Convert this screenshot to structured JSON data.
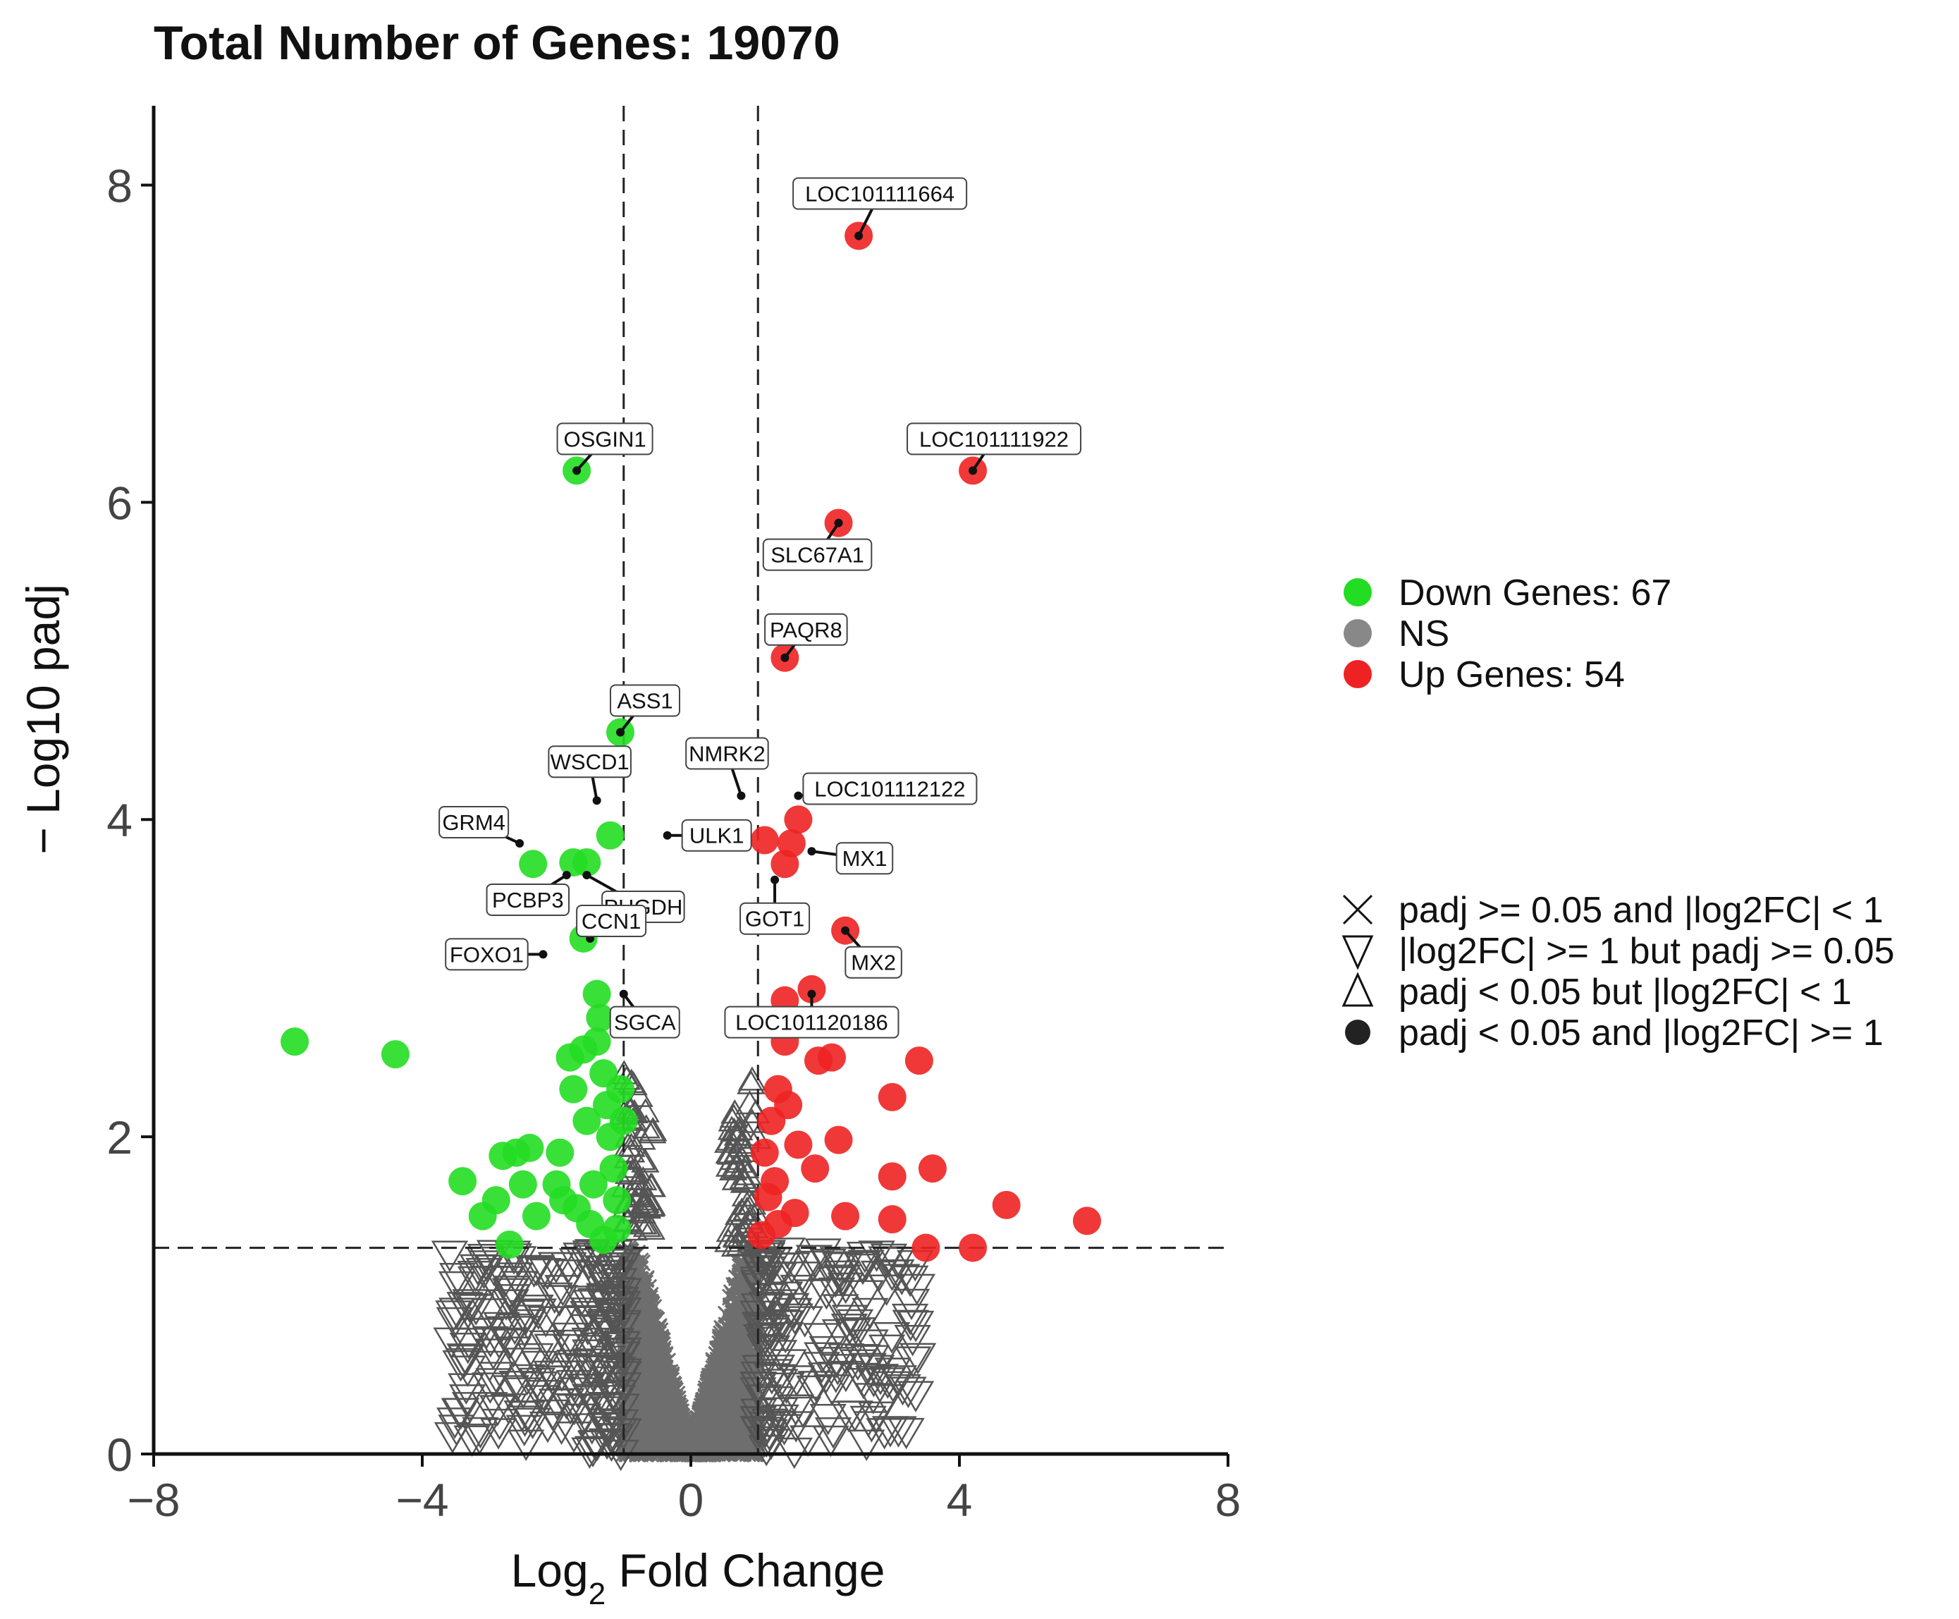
{
  "chart_data": {
    "type": "scatter",
    "title": "Total Number of Genes: 19070",
    "xlabel": {
      "base": "Log",
      "sub": "2",
      "rest": " Fold Change"
    },
    "ylabel": "− Log10 padj",
    "xlim": [
      -8,
      8
    ],
    "ylim": [
      0,
      8.5
    ],
    "x_ticks": [
      -8,
      -4,
      0,
      4,
      8
    ],
    "x_tick_labels": [
      "−8",
      "−4",
      "0",
      "4",
      "8"
    ],
    "y_ticks": [
      0,
      2,
      4,
      6,
      8
    ],
    "y_tick_labels": [
      "0",
      "2",
      "4",
      "6",
      "8"
    ],
    "thresholds": {
      "log2fc": [
        -1,
        1
      ],
      "neg_log10_padj": 1.3
    },
    "colors": {
      "down": "#22dd22",
      "up": "#ee2222",
      "ns": "#6e6e6e",
      "hollow": "#555555"
    },
    "legend_color": [
      {
        "label": "Down Genes: 67",
        "color": "#22dd22"
      },
      {
        "label": "NS",
        "color": "#888888"
      },
      {
        "label": "Up Genes: 54",
        "color": "#ee2222"
      }
    ],
    "legend_shape": [
      {
        "label": "padj >= 0.05 and |log2FC| < 1",
        "shape": "cross"
      },
      {
        "label": "|log2FC| >= 1 but padj >= 0.05",
        "shape": "triangle-down"
      },
      {
        "label": "padj < 0.05 but |log2FC| < 1",
        "shape": "triangle-up"
      },
      {
        "label": "padj < 0.05 and |log2FC| >= 1",
        "shape": "circle"
      }
    ],
    "series": [
      {
        "name": "Down Genes",
        "points": [
          [
            -5.9,
            2.6
          ],
          [
            -4.4,
            2.52
          ],
          [
            -3.4,
            1.72
          ],
          [
            -3.1,
            1.5
          ],
          [
            -2.9,
            1.6
          ],
          [
            -2.8,
            1.88
          ],
          [
            -2.6,
            1.9
          ],
          [
            -2.4,
            1.93
          ],
          [
            -2.5,
            1.7
          ],
          [
            -2.7,
            1.32
          ],
          [
            -2.3,
            1.5
          ],
          [
            -1.8,
            2.5
          ],
          [
            -1.75,
            2.3
          ],
          [
            -1.6,
            2.55
          ],
          [
            -1.55,
            2.1
          ],
          [
            -1.4,
            2.6
          ],
          [
            -1.3,
            2.4
          ],
          [
            -1.2,
            2.0
          ],
          [
            -1.15,
            1.8
          ],
          [
            -1.1,
            1.6
          ],
          [
            -1.5,
            1.45
          ],
          [
            -1.9,
            1.6
          ],
          [
            -1.95,
            1.9
          ],
          [
            -2.0,
            1.7
          ],
          [
            -1.7,
            1.55
          ],
          [
            -1.3,
            1.35
          ],
          [
            -1.25,
            2.2
          ],
          [
            -1.05,
            2.3
          ],
          [
            -1.35,
            2.75
          ],
          [
            -1.4,
            2.9
          ],
          [
            -1.6,
            3.25
          ],
          [
            -2.35,
            3.72
          ],
          [
            -1.75,
            3.73
          ],
          [
            -1.55,
            3.73
          ],
          [
            -1.2,
            3.9
          ],
          [
            -1.05,
            4.55
          ],
          [
            -1.7,
            6.2
          ],
          [
            -1.1,
            1.42
          ],
          [
            -1.45,
            1.7
          ],
          [
            -1.0,
            2.1
          ]
        ]
      },
      {
        "name": "Up Genes",
        "points": [
          [
            2.5,
            7.68
          ],
          [
            4.2,
            6.2
          ],
          [
            2.2,
            5.87
          ],
          [
            1.4,
            5.02
          ],
          [
            1.6,
            4.0
          ],
          [
            1.1,
            3.87
          ],
          [
            1.5,
            3.85
          ],
          [
            1.4,
            3.72
          ],
          [
            2.3,
            3.3
          ],
          [
            1.8,
            2.93
          ],
          [
            1.4,
            2.86
          ],
          [
            3.4,
            2.48
          ],
          [
            3.0,
            2.25
          ],
          [
            2.1,
            2.5
          ],
          [
            1.9,
            2.48
          ],
          [
            1.4,
            2.6
          ],
          [
            1.3,
            2.3
          ],
          [
            1.2,
            2.1
          ],
          [
            1.1,
            1.9
          ],
          [
            1.15,
            1.62
          ],
          [
            1.3,
            1.45
          ],
          [
            1.55,
            1.52
          ],
          [
            1.6,
            1.95
          ],
          [
            2.2,
            1.98
          ],
          [
            3.0,
            1.75
          ],
          [
            3.6,
            1.8
          ],
          [
            4.7,
            1.57
          ],
          [
            5.9,
            1.47
          ],
          [
            2.3,
            1.5
          ],
          [
            3.0,
            1.48
          ],
          [
            3.5,
            1.3
          ],
          [
            4.2,
            1.3
          ],
          [
            1.05,
            1.38
          ],
          [
            1.85,
            1.8
          ],
          [
            1.25,
            1.72
          ],
          [
            1.45,
            2.2
          ]
        ]
      }
    ],
    "labels": [
      {
        "text": "LOC101111664",
        "x": 2.5,
        "y": 7.68
      },
      {
        "text": "OSGIN1",
        "x": -1.7,
        "y": 6.2
      },
      {
        "text": "LOC101111922",
        "x": 4.2,
        "y": 6.2
      },
      {
        "text": "SLC67A1",
        "x": 2.2,
        "y": 5.87
      },
      {
        "text": "PAQR8",
        "x": 1.4,
        "y": 5.02
      },
      {
        "text": "ASS1",
        "x": -1.05,
        "y": 4.55
      },
      {
        "text": "WSCD1",
        "x": -1.4,
        "y": 4.12
      },
      {
        "text": "NMRK2",
        "x": 0.75,
        "y": 4.15
      },
      {
        "text": "LOC101112122",
        "x": 1.6,
        "y": 4.15
      },
      {
        "text": "GRM4",
        "x": -2.55,
        "y": 3.85
      },
      {
        "text": "ULK1",
        "x": -0.35,
        "y": 3.9
      },
      {
        "text": "MX1",
        "x": 1.8,
        "y": 3.8
      },
      {
        "text": "PCBP3",
        "x": -1.85,
        "y": 3.65
      },
      {
        "text": "PHGDH",
        "x": -1.55,
        "y": 3.65
      },
      {
        "text": "GOT1",
        "x": 1.25,
        "y": 3.62
      },
      {
        "text": "FOXO1",
        "x": -2.2,
        "y": 3.15
      },
      {
        "text": "CCN1",
        "x": -1.5,
        "y": 3.25
      },
      {
        "text": "MX2",
        "x": 2.3,
        "y": 3.3
      },
      {
        "text": "SGCA",
        "x": -1.0,
        "y": 2.9
      },
      {
        "text": "LOC101120186",
        "x": 1.8,
        "y": 2.9
      }
    ]
  }
}
